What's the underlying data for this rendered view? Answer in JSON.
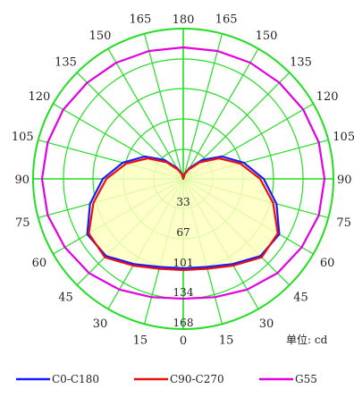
{
  "chart_data": {
    "type": "polar-line",
    "unit_text": "单位: cd",
    "angle_labels": [
      {
        "angle": 0,
        "text": "0"
      },
      {
        "angle": 15,
        "text": "15"
      },
      {
        "angle": 30,
        "text": "30"
      },
      {
        "angle": 45,
        "text": "45"
      },
      {
        "angle": 60,
        "text": "60"
      },
      {
        "angle": 75,
        "text": "75"
      },
      {
        "angle": 90,
        "text": "90"
      },
      {
        "angle": 105,
        "text": "105"
      },
      {
        "angle": 120,
        "text": "120"
      },
      {
        "angle": 135,
        "text": "135"
      },
      {
        "angle": 150,
        "text": "150"
      },
      {
        "angle": 165,
        "text": "165"
      },
      {
        "angle": 180,
        "text": "180"
      }
    ],
    "radial_ticks": [
      33,
      67,
      101,
      134,
      168
    ],
    "radial_max": 168,
    "grid_angle_step": 15,
    "grid_color": "#22dd22",
    "fill_color": "#ffffc0",
    "series": [
      {
        "name": "C0-C180",
        "color": "#1a1aff",
        "fill": true,
        "angles": [
          0,
          15,
          30,
          45,
          60,
          75,
          90,
          105,
          120,
          135,
          150,
          165,
          180
        ],
        "values": [
          100,
          102,
          110,
          122,
          124,
          108,
          90,
          70,
          50,
          30,
          14,
          6,
          0
        ]
      },
      {
        "name": "C90-C270",
        "color": "#e81010",
        "fill": false,
        "angles": [
          0,
          15,
          30,
          45,
          60,
          75,
          90,
          105,
          120,
          135,
          150,
          165,
          180
        ],
        "values": [
          102,
          104,
          112,
          124,
          122,
          104,
          86,
          66,
          46,
          26,
          12,
          5,
          0
        ]
      },
      {
        "name": "G55",
        "color": "#e000e0",
        "fill": false,
        "angles": [
          0,
          15,
          30,
          45,
          60,
          75,
          90,
          105,
          120,
          135,
          150,
          165,
          180
        ],
        "values": [
          134,
          137,
          143,
          149,
          153,
          157,
          158,
          157,
          155,
          152,
          150,
          148,
          147
        ]
      }
    ]
  }
}
